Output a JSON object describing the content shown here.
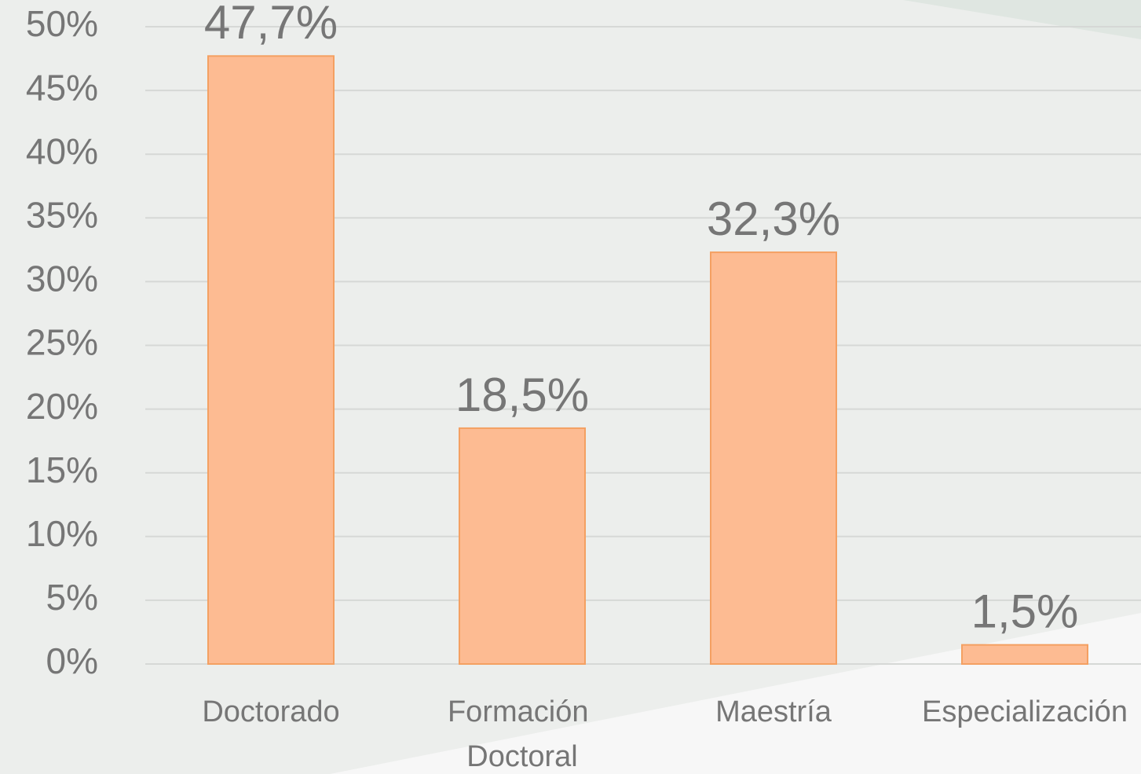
{
  "chart_data": {
    "type": "bar",
    "categories": [
      "Doctorado",
      "Formación Doctoral",
      "Maestría",
      "Especialización"
    ],
    "values": [
      47.7,
      18.5,
      32.3,
      1.5
    ],
    "value_labels": [
      "47,7%",
      "18,5%",
      "32,3%",
      "1,5%"
    ],
    "color": "#fdbb92",
    "ylim": [
      0,
      50
    ],
    "yticks": [
      {
        "value": 0,
        "label": "0%"
      },
      {
        "value": 5,
        "label": "5%"
      },
      {
        "value": 10,
        "label": "10%"
      },
      {
        "value": 15,
        "label": "15%"
      },
      {
        "value": 20,
        "label": "20%"
      },
      {
        "value": 25,
        "label": "25%"
      },
      {
        "value": 30,
        "label": "30%"
      },
      {
        "value": 35,
        "label": "35%"
      },
      {
        "value": 40,
        "label": "40%"
      },
      {
        "value": 45,
        "label": "45%"
      },
      {
        "value": 50,
        "label": "50%"
      }
    ],
    "grid": true
  }
}
